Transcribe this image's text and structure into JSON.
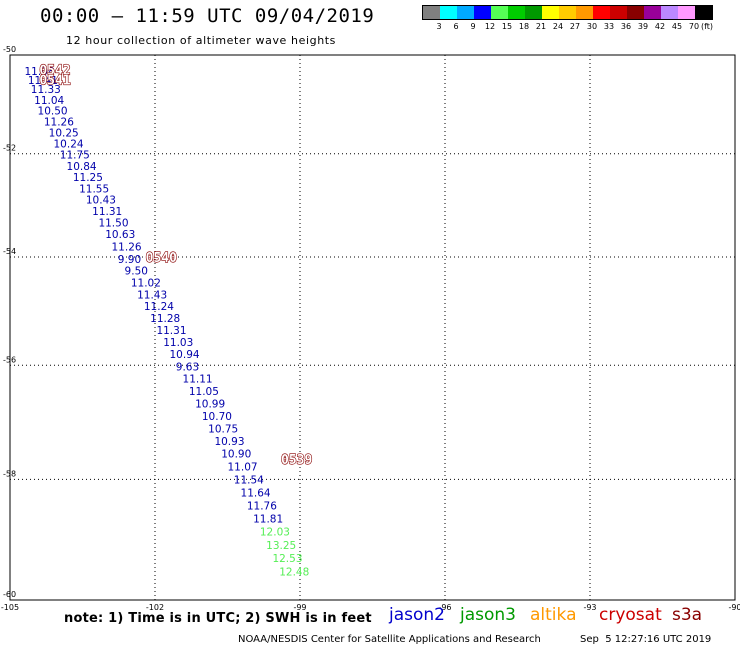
{
  "header": {
    "title": "00:00 – 11:59 UTC 09/04/2019",
    "subtitle": "12 hour collection of altimeter wave heights"
  },
  "legend": {
    "colors": [
      "#808080",
      "#00ffff",
      "#00aaff",
      "#0000ff",
      "#55ff55",
      "#00cc00",
      "#009900",
      "#ffff00",
      "#ffcc00",
      "#ff9900",
      "#ff0000",
      "#cc0000",
      "#880000",
      "#990099",
      "#bb88ff",
      "#ff99ff",
      "#000000"
    ],
    "labels": [
      "3",
      "6",
      "9",
      "12",
      "15",
      "18",
      "21",
      "24",
      "27",
      "30",
      "33",
      "36",
      "39",
      "42",
      "45",
      "70",
      "(ft)"
    ]
  },
  "map": {
    "lon_labels": [
      "-105",
      "-102",
      "-99",
      "-96",
      "-93",
      "-90"
    ],
    "lat_labels": [
      "-50",
      "-52",
      "-54",
      "-56",
      "-58",
      "-60"
    ]
  },
  "time_marks": [
    {
      "text": "0542",
      "lon": -104.6,
      "lat": -50.3
    },
    {
      "text": "0541",
      "lon": -104.6,
      "lat": -50.5
    },
    {
      "text": "0540",
      "lon": -102.4,
      "lat": -54.0
    },
    {
      "text": "0539",
      "lon": -99.6,
      "lat": -57.65
    }
  ],
  "observations": [
    {
      "v": "11.08",
      "lon": -104.7,
      "lat": -50.33,
      "c": "#0000aa"
    },
    {
      "v": "11.41",
      "lon": -104.63,
      "lat": -50.51,
      "c": "#0000aa"
    },
    {
      "v": "11.33",
      "lon": -104.57,
      "lat": -50.7,
      "c": "#0000aa"
    },
    {
      "v": "11.04",
      "lon": -104.5,
      "lat": -50.92,
      "c": "#0000aa"
    },
    {
      "v": "10.50",
      "lon": -104.43,
      "lat": -51.14,
      "c": "#0000aa"
    },
    {
      "v": "11.26",
      "lon": -104.3,
      "lat": -51.36,
      "c": "#0000aa"
    },
    {
      "v": "10.25",
      "lon": -104.2,
      "lat": -51.58,
      "c": "#0000aa"
    },
    {
      "v": "10.24",
      "lon": -104.1,
      "lat": -51.8,
      "c": "#0000aa"
    },
    {
      "v": "11.75",
      "lon": -103.97,
      "lat": -52.02,
      "c": "#0000aa"
    },
    {
      "v": "10.84",
      "lon": -103.83,
      "lat": -52.24,
      "c": "#0000aa"
    },
    {
      "v": "11.25",
      "lon": -103.7,
      "lat": -52.46,
      "c": "#0000aa"
    },
    {
      "v": "11.55",
      "lon": -103.57,
      "lat": -52.68,
      "c": "#0000aa"
    },
    {
      "v": "10.43",
      "lon": -103.43,
      "lat": -52.9,
      "c": "#0000aa"
    },
    {
      "v": "11.31",
      "lon": -103.3,
      "lat": -53.12,
      "c": "#0000aa"
    },
    {
      "v": "11.50",
      "lon": -103.17,
      "lat": -53.34,
      "c": "#0000aa"
    },
    {
      "v": "10.63",
      "lon": -103.03,
      "lat": -53.56,
      "c": "#0000aa"
    },
    {
      "v": "11.26",
      "lon": -102.9,
      "lat": -53.8,
      "c": "#0000aa"
    },
    {
      "v": "9.90",
      "lon": -102.77,
      "lat": -54.04,
      "c": "#0000aa"
    },
    {
      "v": "9.50",
      "lon": -102.63,
      "lat": -54.26,
      "c": "#0000aa"
    },
    {
      "v": "11.02",
      "lon": -102.5,
      "lat": -54.48,
      "c": "#0000aa"
    },
    {
      "v": "11.43",
      "lon": -102.37,
      "lat": -54.7,
      "c": "#0000aa"
    },
    {
      "v": "11.24",
      "lon": -102.23,
      "lat": -54.92,
      "c": "#0000aa"
    },
    {
      "v": "11.28",
      "lon": -102.1,
      "lat": -55.14,
      "c": "#0000aa"
    },
    {
      "v": "11.31",
      "lon": -101.97,
      "lat": -55.36,
      "c": "#0000aa"
    },
    {
      "v": "11.03",
      "lon": -101.83,
      "lat": -55.58,
      "c": "#0000aa"
    },
    {
      "v": "10.94",
      "lon": -101.7,
      "lat": -55.8,
      "c": "#0000aa"
    },
    {
      "v": "9.63",
      "lon": -101.57,
      "lat": -56.02,
      "c": "#0000aa"
    },
    {
      "v": "11.11",
      "lon": -101.43,
      "lat": -56.24,
      "c": "#0000aa"
    },
    {
      "v": "11.05",
      "lon": -101.3,
      "lat": -56.46,
      "c": "#0000aa"
    },
    {
      "v": "10.99",
      "lon": -101.17,
      "lat": -56.68,
      "c": "#0000aa"
    },
    {
      "v": "10.70",
      "lon": -101.03,
      "lat": -56.9,
      "c": "#0000aa"
    },
    {
      "v": "10.75",
      "lon": -100.9,
      "lat": -57.12,
      "c": "#0000aa"
    },
    {
      "v": "10.93",
      "lon": -100.77,
      "lat": -57.34,
      "c": "#0000aa"
    },
    {
      "v": "10.90",
      "lon": -100.63,
      "lat": -57.56,
      "c": "#0000aa"
    },
    {
      "v": "11.07",
      "lon": -100.5,
      "lat": -57.78,
      "c": "#0000aa"
    },
    {
      "v": "11.54",
      "lon": -100.37,
      "lat": -58.0,
      "c": "#0000aa"
    },
    {
      "v": "11.64",
      "lon": -100.23,
      "lat": -58.22,
      "c": "#0000aa"
    },
    {
      "v": "11.76",
      "lon": -100.1,
      "lat": -58.44,
      "c": "#0000aa"
    },
    {
      "v": "11.81",
      "lon": -99.97,
      "lat": -58.66,
      "c": "#0000aa"
    },
    {
      "v": "12.03",
      "lon": -99.83,
      "lat": -58.88,
      "c": "#55ee55"
    },
    {
      "v": "13.25",
      "lon": -99.7,
      "lat": -59.1,
      "c": "#55ee55"
    },
    {
      "v": "12.53",
      "lon": -99.57,
      "lat": -59.32,
      "c": "#55ee55"
    },
    {
      "v": "12.48",
      "lon": -99.43,
      "lat": -59.54,
      "c": "#55ee55"
    }
  ],
  "footer": {
    "note": "note: 1) Time is in UTC; 2) SWH is in feet",
    "satellites": [
      {
        "name": "jason2",
        "color": "#0000cc"
      },
      {
        "name": "jason3",
        "color": "#009900"
      },
      {
        "name": "altika",
        "color": "#ff9900"
      },
      {
        "name": "cryosat",
        "color": "#cc0000"
      },
      {
        "name": "s3a",
        "color": "#880000"
      }
    ],
    "credit": "NOAA/NESDIS Center for Satellite Applications and Research",
    "timestamp": "Sep  5 12:27:16 UTC 2019"
  }
}
